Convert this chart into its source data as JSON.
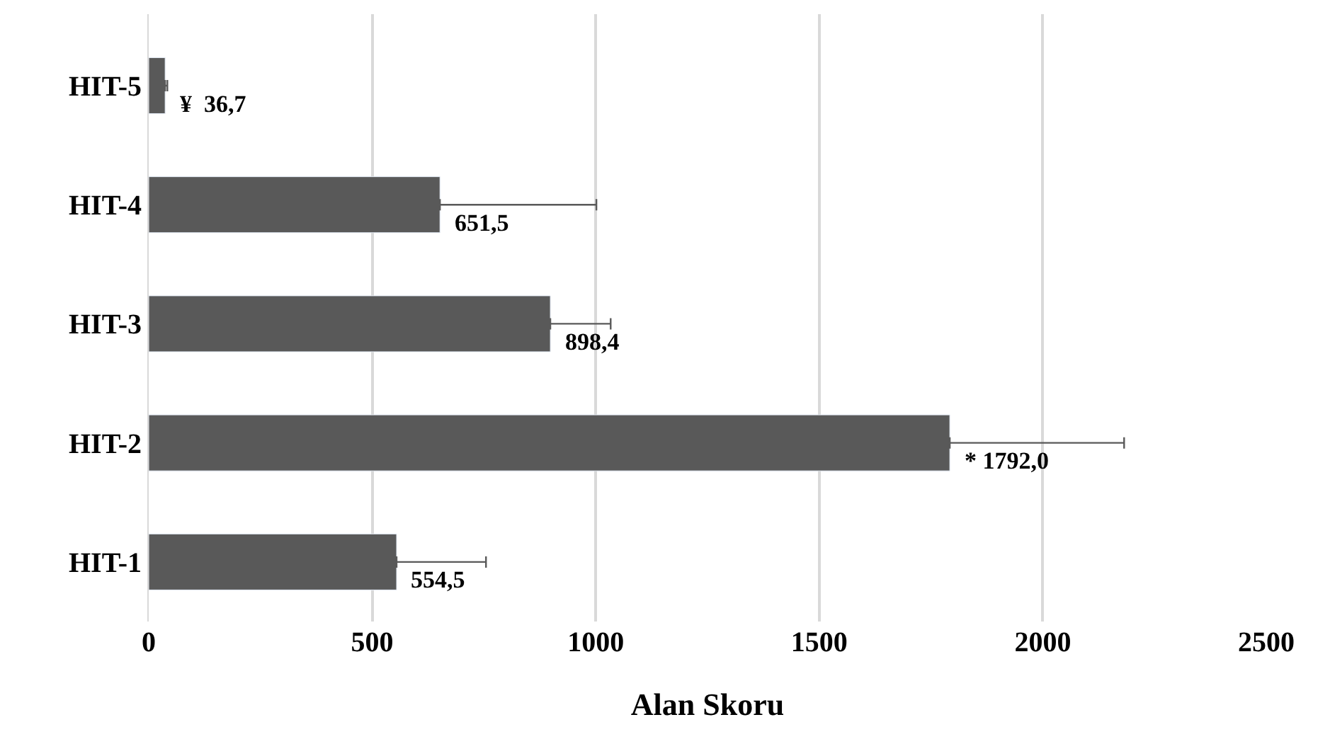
{
  "chart_data": {
    "type": "bar",
    "orientation": "horizontal",
    "xlabel": "Alan Skoru",
    "categories": [
      "HIT-5",
      "HIT-4",
      "HIT-3",
      "HIT-2",
      "HIT-1"
    ],
    "values": [
      36.7,
      651.5,
      898.4,
      1792.0,
      554.5
    ],
    "errors": [
      5,
      350,
      135,
      390,
      200
    ],
    "value_labels": [
      "¥  36,7",
      "651,5",
      "898,4",
      "* 1792,0",
      "554,5"
    ],
    "color": "#595959",
    "xlim": [
      0,
      2500
    ],
    "xticks": [
      0,
      500,
      1000,
      1500,
      2000,
      2500
    ],
    "grid": "x",
    "legend": false
  }
}
